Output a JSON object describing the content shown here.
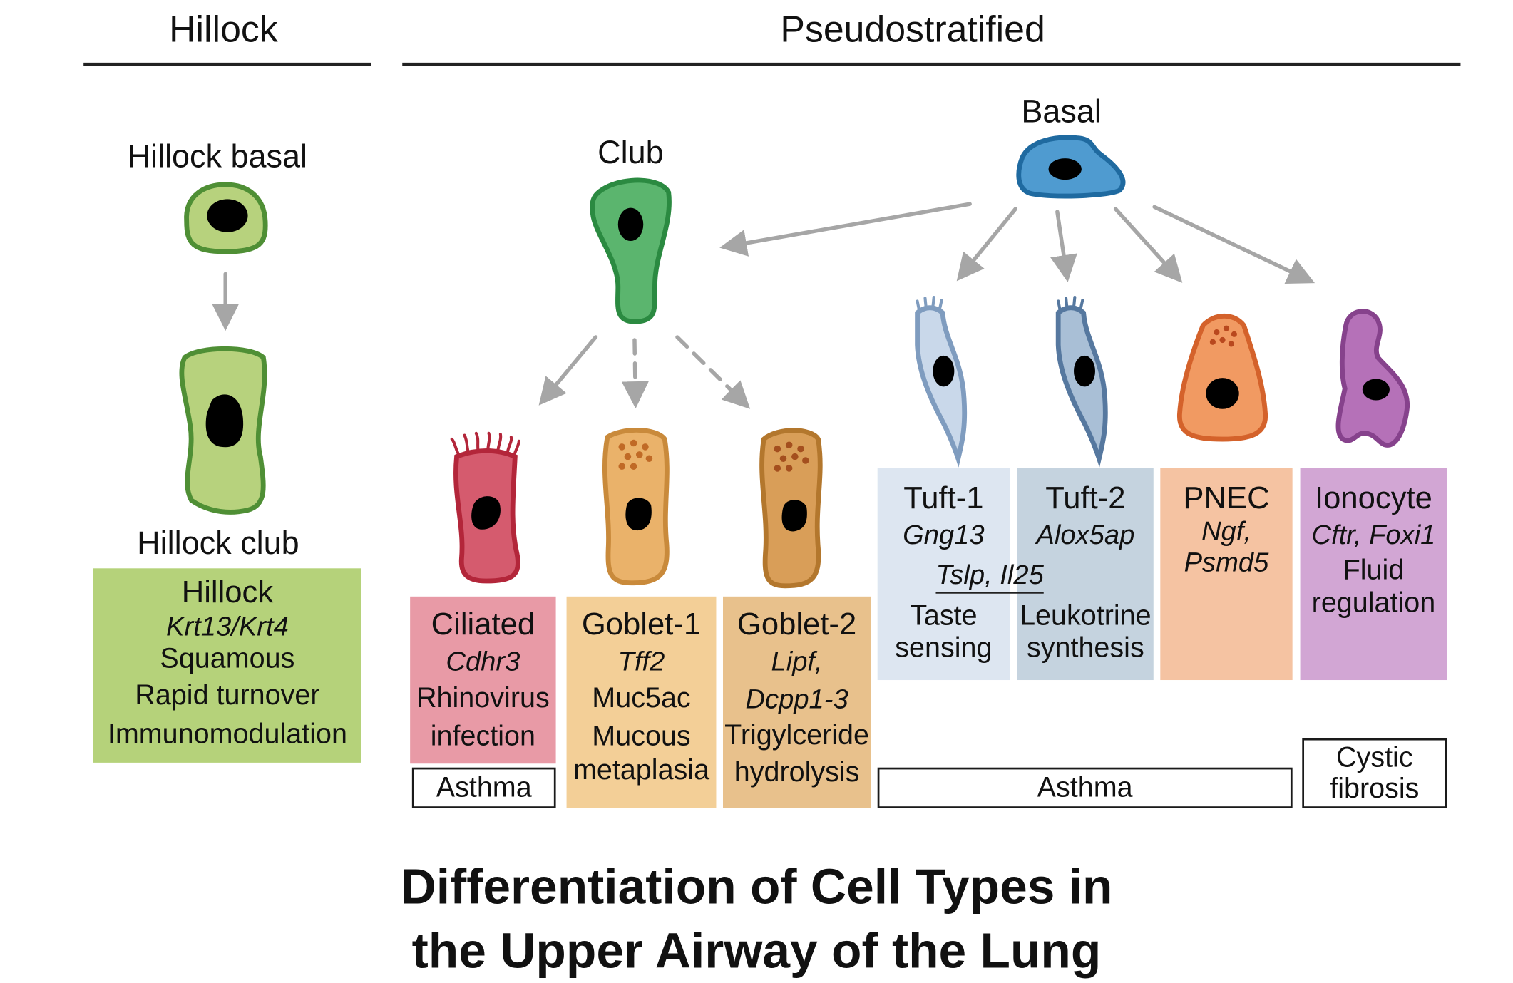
{
  "sections": {
    "hillock": "Hillock",
    "pseudostratified": "Pseudostratified"
  },
  "cells": {
    "hillock_basal": "Hillock basal",
    "hillock_club": "Hillock club",
    "club": "Club",
    "basal": "Basal"
  },
  "hillock_box": {
    "title": "Hillock",
    "gene": "Krt13/Krt4",
    "features": [
      "Squamous",
      "Rapid turnover",
      "Immunomodulation"
    ]
  },
  "ciliated": {
    "title": "Ciliated",
    "gene": "Cdhr3",
    "features": [
      "Rhinovirus",
      "infection"
    ]
  },
  "goblet1": {
    "title": "Goblet-1",
    "gene": "Tff2",
    "features": [
      "Muc5ac",
      "Mucous",
      "metaplasia"
    ]
  },
  "goblet2": {
    "title": "Goblet-2",
    "gene_lines": [
      "Lipf,",
      "Dcpp1-3"
    ],
    "features": [
      "Trigylceride",
      "hydrolysis"
    ]
  },
  "tuft1": {
    "title": "Tuft-1",
    "gene": "Gng13",
    "features": [
      "Taste",
      "sensing"
    ]
  },
  "tuft2": {
    "title": "Tuft-2",
    "gene": "Alox5ap",
    "features": [
      "Leukotrine",
      "synthesis"
    ]
  },
  "tuft_shared_genes": "Tslp, Il25",
  "pnec": {
    "title": "PNEC",
    "gene_lines": [
      "Ngf,",
      "Psmd5"
    ]
  },
  "ionocyte": {
    "title": "Ionocyte",
    "gene": "Cftr, Foxi1",
    "features": [
      "Fluid",
      "regulation"
    ]
  },
  "diseases": {
    "ciliated": "Asthma",
    "tuft": "Asthma",
    "ionocyte_lines": [
      "Cystic",
      "fibrosis"
    ]
  },
  "title_lines": [
    "Differentiation of Cell Types in",
    "the Upper Airway of the Lung"
  ],
  "colors": {
    "hillock_fill": "#b7d27d",
    "hillock_stroke": "#4f8f35",
    "hillock_box": "#b5d27a",
    "club_fill": "#5bb56e",
    "club_stroke": "#2b8a41",
    "basal_fill": "#4f9bd0",
    "basal_stroke": "#1f6aa0",
    "ciliated_fill": "#d55b6e",
    "ciliated_stroke": "#b3263a",
    "ciliated_box": "#e89aa6",
    "goblet1_fill": "#eab26a",
    "goblet1_stroke": "#c98a3b",
    "goblet1_box": "#f3cf97",
    "goblet2_fill": "#d99e58",
    "goblet2_stroke": "#b3772d",
    "goblet2_box": "#e8c18c",
    "tuft1_fill": "#c9d8ea",
    "tuft1_stroke": "#7f9cbf",
    "tuft1_box": "#dde6f1",
    "tuft2_fill": "#a9bfd6",
    "tuft2_stroke": "#56789f",
    "tuft2_box": "#c5d3df",
    "pnec_fill": "#f19a62",
    "pnec_stroke": "#d4622b",
    "pnec_box": "#f5c3a2",
    "ionocyte_fill": "#b571b8",
    "ionocyte_stroke": "#86428c",
    "ionocyte_box": "#d2a6d4",
    "arrow": "#a6a6a6"
  }
}
